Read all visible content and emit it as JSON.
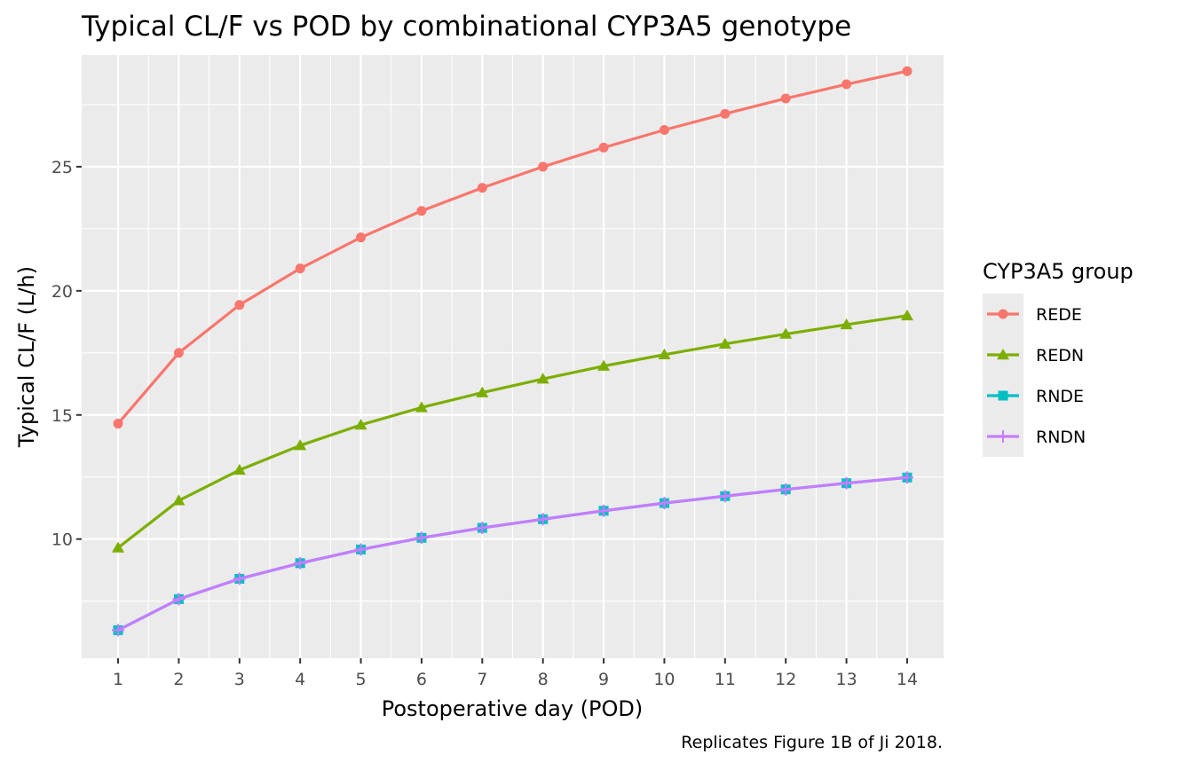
{
  "chart_data": {
    "type": "line",
    "title": "Typical CL/F vs POD by combinational CYP3A5 genotype",
    "xlabel": "Postoperative day (POD)",
    "ylabel": "Typical CL/F (L/h)",
    "caption": "Replicates Figure 1B of Ji 2018.",
    "x": [
      1,
      2,
      3,
      4,
      5,
      6,
      7,
      8,
      9,
      10,
      11,
      12,
      13,
      14
    ],
    "xlim": [
      0.4,
      14.6
    ],
    "ylim": [
      5.2,
      29.5
    ],
    "x_ticks": [
      "1",
      "2",
      "3",
      "4",
      "5",
      "6",
      "7",
      "8",
      "9",
      "10",
      "11",
      "12",
      "13",
      "14"
    ],
    "y_ticks": [
      "10",
      "15",
      "20",
      "25"
    ],
    "grid": true,
    "legend": {
      "title": "CYP3A5 group",
      "position": "right"
    },
    "series": [
      {
        "name": "REDE",
        "color": "#F8766D",
        "marker": "circle",
        "values": [
          14.65,
          17.5,
          19.43,
          20.9,
          22.15,
          23.22,
          24.15,
          25.0,
          25.77,
          26.48,
          27.13,
          27.75,
          28.32,
          28.85
        ]
      },
      {
        "name": "REDN",
        "color": "#7CAE00",
        "marker": "triangle",
        "values": [
          9.65,
          11.55,
          12.78,
          13.77,
          14.6,
          15.3,
          15.9,
          16.45,
          16.97,
          17.43,
          17.86,
          18.26,
          18.64,
          19.0
        ]
      },
      {
        "name": "RNDE",
        "color": "#00BFC4",
        "marker": "square",
        "values": [
          6.33,
          7.58,
          8.4,
          9.03,
          9.58,
          10.05,
          10.45,
          10.8,
          11.14,
          11.45,
          11.73,
          12.0,
          12.25,
          12.48
        ]
      },
      {
        "name": "RNDN",
        "color": "#C77CFF",
        "marker": "plus",
        "values": [
          6.33,
          7.58,
          8.4,
          9.03,
          9.58,
          10.05,
          10.45,
          10.8,
          11.14,
          11.45,
          11.73,
          12.0,
          12.25,
          12.48
        ]
      }
    ]
  }
}
